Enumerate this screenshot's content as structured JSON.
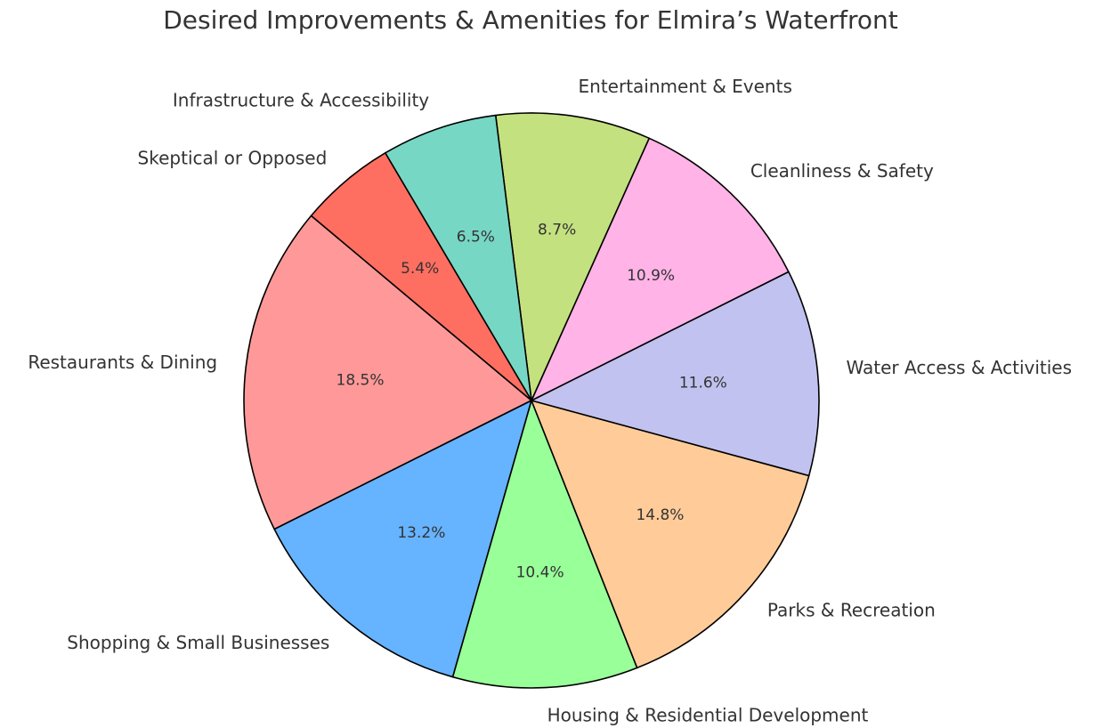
{
  "chart_data": {
    "type": "pie",
    "title": "Desired Improvements & Amenities for Elmira’s Waterfront",
    "categories": [
      "Restaurants & Dining",
      "Shopping & Small Businesses",
      "Housing & Residential Development",
      "Parks & Recreation",
      "Water Access & Activities",
      "Cleanliness & Safety",
      "Entertainment & Events",
      "Infrastructure & Accessibility",
      "Skeptical or Opposed"
    ],
    "values": [
      18.5,
      13.2,
      10.4,
      14.8,
      11.6,
      10.9,
      8.7,
      6.5,
      5.4
    ],
    "value_labels": [
      "18.5%",
      "13.2%",
      "10.4%",
      "14.8%",
      "11.6%",
      "10.9%",
      "8.7%",
      "6.5%",
      "5.4%"
    ],
    "colors": [
      "#ff9999",
      "#66b3ff",
      "#99ff99",
      "#ffcc99",
      "#c2c2f0",
      "#ffb3e6",
      "#c4e17f",
      "#76d7c4",
      "#ff6f61"
    ]
  }
}
